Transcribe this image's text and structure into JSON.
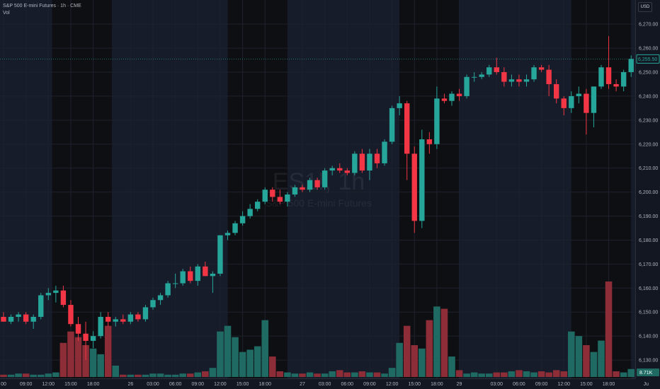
{
  "header": {
    "title": "S&P 500 E-mini Futures · 1h · CME",
    "volume_label": "Vol"
  },
  "currency": "USD",
  "watermark": {
    "symbol": "ES1!, 1h",
    "name": "S&P 500 E-mini Futures"
  },
  "colors": {
    "background": "#131722",
    "session_shade": "#0e0f13",
    "extended_session": "#171c2b",
    "up": "#26a69a",
    "down": "#f23645",
    "vol_up": "#1f6b63",
    "vol_down": "#8c2d37",
    "grid": "#1e222d",
    "axis_text": "#b2b5be"
  },
  "chart_data": {
    "type": "candlestick",
    "y_axis": {
      "range": [
        6120,
        6278
      ],
      "ticks": [
        "6,270.00",
        "6,260.00",
        "6,250.00",
        "6,240.00",
        "6,230.00",
        "6,220.00",
        "6,210.00",
        "6,200.00",
        "6,190.00",
        "6,180.00",
        "6,170.00",
        "6,160.00",
        "6,150.00",
        "6,140.00",
        "6,130.00"
      ],
      "tick_values": [
        6270,
        6260,
        6250,
        6240,
        6230,
        6220,
        6210,
        6200,
        6190,
        6180,
        6170,
        6160,
        6150,
        6140,
        6130
      ]
    },
    "x_axis": {
      "tick_labels": [
        {
          "bar": 0,
          "label": "00"
        },
        {
          "bar": 3,
          "label": "09:00"
        },
        {
          "bar": 6,
          "label": "12:00"
        },
        {
          "bar": 9,
          "label": "15:00"
        },
        {
          "bar": 12,
          "label": "18:00"
        },
        {
          "bar": 17,
          "label": "26"
        },
        {
          "bar": 20,
          "label": "03:00"
        },
        {
          "bar": 23,
          "label": "06:00"
        },
        {
          "bar": 26,
          "label": "09:00"
        },
        {
          "bar": 29,
          "label": "12:00"
        },
        {
          "bar": 32,
          "label": "15:00"
        },
        {
          "bar": 35,
          "label": "18:00"
        },
        {
          "bar": 40,
          "label": "27"
        },
        {
          "bar": 43,
          "label": "03:00"
        },
        {
          "bar": 46,
          "label": "06:00"
        },
        {
          "bar": 49,
          "label": "09:00"
        },
        {
          "bar": 52,
          "label": "12:00"
        },
        {
          "bar": 55,
          "label": "15:00"
        },
        {
          "bar": 58,
          "label": "18:00"
        },
        {
          "bar": 61,
          "label": "29"
        },
        {
          "bar": 66,
          "label": "03:00"
        },
        {
          "bar": 69,
          "label": "06:00"
        },
        {
          "bar": 72,
          "label": "09:00"
        },
        {
          "bar": 75,
          "label": "12:00"
        },
        {
          "bar": 78,
          "label": "15:00"
        },
        {
          "bar": 81,
          "label": "18:00"
        },
        {
          "bar": 86,
          "label": "Ju"
        }
      ]
    },
    "closed_sessions": [
      [
        7,
        14
      ],
      [
        30.5,
        37.5
      ],
      [
        53.5,
        60.5
      ],
      [
        76.5,
        83.5
      ]
    ],
    "candles": [
      {
        "o": 6148,
        "h": 6150,
        "l": 6146,
        "c": 6146
      },
      {
        "o": 6146,
        "h": 6149,
        "l": 6145,
        "c": 6148
      },
      {
        "o": 6148,
        "h": 6150,
        "l": 6146,
        "c": 6149
      },
      {
        "o": 6149,
        "h": 6150,
        "l": 6145,
        "c": 6146
      },
      {
        "o": 6146,
        "h": 6149,
        "l": 6143,
        "c": 6148
      },
      {
        "o": 6148,
        "h": 6158,
        "l": 6147,
        "c": 6157
      },
      {
        "o": 6157,
        "h": 6160,
        "l": 6155,
        "c": 6158
      },
      {
        "o": 6158,
        "h": 6161,
        "l": 6154,
        "c": 6159
      },
      {
        "o": 6159,
        "h": 6161,
        "l": 6152,
        "c": 6153
      },
      {
        "o": 6153,
        "h": 6155,
        "l": 6144,
        "c": 6145
      },
      {
        "o": 6145,
        "h": 6148,
        "l": 6138,
        "c": 6141
      },
      {
        "o": 6141,
        "h": 6146,
        "l": 6130,
        "c": 6138
      },
      {
        "o": 6138,
        "h": 6142,
        "l": 6135,
        "c": 6140
      },
      {
        "o": 6140,
        "h": 6150,
        "l": 6139,
        "c": 6148
      },
      {
        "o": 6148,
        "h": 6150,
        "l": 6144,
        "c": 6146
      },
      {
        "o": 6146,
        "h": 6148,
        "l": 6144,
        "c": 6147
      },
      {
        "o": 6147,
        "h": 6149,
        "l": 6145,
        "c": 6146
      },
      {
        "o": 6146,
        "h": 6150,
        "l": 6145,
        "c": 6149
      },
      {
        "o": 6149,
        "h": 6150,
        "l": 6146,
        "c": 6147
      },
      {
        "o": 6147,
        "h": 6153,
        "l": 6146,
        "c": 6152
      },
      {
        "o": 6152,
        "h": 6156,
        "l": 6151,
        "c": 6155
      },
      {
        "o": 6155,
        "h": 6158,
        "l": 6153,
        "c": 6157
      },
      {
        "o": 6157,
        "h": 6163,
        "l": 6156,
        "c": 6162
      },
      {
        "o": 6162,
        "h": 6166,
        "l": 6160,
        "c": 6162
      },
      {
        "o": 6162,
        "h": 6168,
        "l": 6161,
        "c": 6167
      },
      {
        "o": 6167,
        "h": 6169,
        "l": 6162,
        "c": 6163
      },
      {
        "o": 6163,
        "h": 6170,
        "l": 6161,
        "c": 6169
      },
      {
        "o": 6169,
        "h": 6171,
        "l": 6165,
        "c": 6165
      },
      {
        "o": 6165,
        "h": 6167,
        "l": 6158,
        "c": 6166
      },
      {
        "o": 6166,
        "h": 6182,
        "l": 6165,
        "c": 6182
      },
      {
        "o": 6182,
        "h": 6184,
        "l": 6180,
        "c": 6183
      },
      {
        "o": 6183,
        "h": 6188,
        "l": 6182,
        "c": 6187
      },
      {
        "o": 6187,
        "h": 6192,
        "l": 6186,
        "c": 6190
      },
      {
        "o": 6190,
        "h": 6195,
        "l": 6189,
        "c": 6193
      },
      {
        "o": 6193,
        "h": 6197,
        "l": 6192,
        "c": 6196
      },
      {
        "o": 6196,
        "h": 6202,
        "l": 6195,
        "c": 6201
      },
      {
        "o": 6201,
        "h": 6202,
        "l": 6196,
        "c": 6198
      },
      {
        "o": 6198,
        "h": 6201,
        "l": 6195,
        "c": 6196
      },
      {
        "o": 6196,
        "h": 6200,
        "l": 6194,
        "c": 6199
      },
      {
        "o": 6199,
        "h": 6203,
        "l": 6198,
        "c": 6202
      },
      {
        "o": 6202,
        "h": 6203,
        "l": 6200,
        "c": 6201
      },
      {
        "o": 6201,
        "h": 6206,
        "l": 6200,
        "c": 6205
      },
      {
        "o": 6205,
        "h": 6206,
        "l": 6201,
        "c": 6202
      },
      {
        "o": 6202,
        "h": 6210,
        "l": 6201,
        "c": 6209
      },
      {
        "o": 6209,
        "h": 6211,
        "l": 6207,
        "c": 6210
      },
      {
        "o": 6210,
        "h": 6212,
        "l": 6208,
        "c": 6209
      },
      {
        "o": 6209,
        "h": 6210,
        "l": 6207,
        "c": 6208
      },
      {
        "o": 6208,
        "h": 6217,
        "l": 6207,
        "c": 6216
      },
      {
        "o": 6216,
        "h": 6218,
        "l": 6208,
        "c": 6209
      },
      {
        "o": 6209,
        "h": 6218,
        "l": 6205,
        "c": 6216
      },
      {
        "o": 6216,
        "h": 6218,
        "l": 6210,
        "c": 6212
      },
      {
        "o": 6212,
        "h": 6222,
        "l": 6211,
        "c": 6221
      },
      {
        "o": 6221,
        "h": 6236,
        "l": 6220,
        "c": 6235
      },
      {
        "o": 6235,
        "h": 6240,
        "l": 6232,
        "c": 6237
      },
      {
        "o": 6237,
        "h": 6238,
        "l": 6205,
        "c": 6216
      },
      {
        "o": 6216,
        "h": 6219,
        "l": 6183,
        "c": 6188
      },
      {
        "o": 6188,
        "h": 6226,
        "l": 6185,
        "c": 6222
      },
      {
        "o": 6222,
        "h": 6225,
        "l": 6216,
        "c": 6220
      },
      {
        "o": 6220,
        "h": 6244,
        "l": 6218,
        "c": 6239
      },
      {
        "o": 6239,
        "h": 6241,
        "l": 6237,
        "c": 6238
      },
      {
        "o": 6238,
        "h": 6242,
        "l": 6236,
        "c": 6241
      },
      {
        "o": 6241,
        "h": 6243,
        "l": 6238,
        "c": 6240
      },
      {
        "o": 6240,
        "h": 6249,
        "l": 6239,
        "c": 6248
      },
      {
        "o": 6248,
        "h": 6250,
        "l": 6246,
        "c": 6248
      },
      {
        "o": 6248,
        "h": 6250,
        "l": 6247,
        "c": 6249
      },
      {
        "o": 6249,
        "h": 6253,
        "l": 6248,
        "c": 6252
      },
      {
        "o": 6252,
        "h": 6256,
        "l": 6249,
        "c": 6250
      },
      {
        "o": 6250,
        "h": 6252,
        "l": 6244,
        "c": 6246
      },
      {
        "o": 6246,
        "h": 6249,
        "l": 6244,
        "c": 6247
      },
      {
        "o": 6247,
        "h": 6249,
        "l": 6244,
        "c": 6246
      },
      {
        "o": 6246,
        "h": 6249,
        "l": 6244,
        "c": 6247
      },
      {
        "o": 6247,
        "h": 6253,
        "l": 6246,
        "c": 6252
      },
      {
        "o": 6252,
        "h": 6253,
        "l": 6250,
        "c": 6251
      },
      {
        "o": 6251,
        "h": 6253,
        "l": 6240,
        "c": 6245
      },
      {
        "o": 6245,
        "h": 6247,
        "l": 6237,
        "c": 6239
      },
      {
        "o": 6239,
        "h": 6240,
        "l": 6232,
        "c": 6235
      },
      {
        "o": 6235,
        "h": 6242,
        "l": 6233,
        "c": 6240
      },
      {
        "o": 6240,
        "h": 6244,
        "l": 6237,
        "c": 6241
      },
      {
        "o": 6241,
        "h": 6243,
        "l": 6224,
        "c": 6233
      },
      {
        "o": 6233,
        "h": 6244,
        "l": 6227,
        "c": 6244
      },
      {
        "o": 6244,
        "h": 6253,
        "l": 6243,
        "c": 6252
      },
      {
        "o": 6252,
        "h": 6265,
        "l": 6243,
        "c": 6245
      },
      {
        "o": 6245,
        "h": 6247,
        "l": 6242,
        "c": 6244
      },
      {
        "o": 6244,
        "h": 6251,
        "l": 6242,
        "c": 6250
      },
      {
        "o": 6250,
        "h": 6257,
        "l": 6248,
        "c": 6255.5
      }
    ],
    "volume": [
      2,
      2,
      3,
      3,
      2,
      2,
      3,
      4,
      30,
      40,
      35,
      28,
      25,
      20,
      45,
      10,
      2,
      2,
      2,
      2,
      3,
      3,
      2,
      2,
      3,
      3,
      4,
      5,
      8,
      40,
      45,
      35,
      22,
      24,
      27,
      50,
      18,
      5,
      4,
      3,
      3,
      4,
      3,
      3,
      5,
      6,
      4,
      4,
      5,
      4,
      4,
      3,
      8,
      30,
      45,
      28,
      25,
      50,
      62,
      60,
      18,
      6,
      3,
      4,
      3,
      3,
      4,
      4,
      5,
      6,
      5,
      4,
      5,
      4,
      6,
      5,
      40,
      36,
      28,
      22,
      32,
      84,
      5,
      4,
      7
    ],
    "volume_axis_label": "8.71K",
    "last_price": "6,255.50",
    "currency": "USD"
  }
}
